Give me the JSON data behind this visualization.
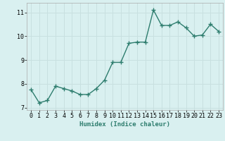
{
  "x": [
    0,
    1,
    2,
    3,
    4,
    5,
    6,
    7,
    8,
    9,
    10,
    11,
    12,
    13,
    14,
    15,
    16,
    17,
    18,
    19,
    20,
    21,
    22,
    23
  ],
  "y": [
    7.75,
    7.2,
    7.3,
    7.9,
    7.8,
    7.7,
    7.55,
    7.55,
    7.8,
    8.15,
    8.9,
    8.9,
    9.7,
    9.75,
    9.75,
    11.1,
    10.45,
    10.45,
    10.6,
    10.35,
    10.0,
    10.05,
    10.5,
    10.2
  ],
  "line_color": "#2e7d6e",
  "marker": "+",
  "marker_size": 4,
  "marker_lw": 1.0,
  "bg_color": "#d9f0f0",
  "grid_color": "#c8e0e0",
  "xlabel": "Humidex (Indice chaleur)",
  "ylim": [
    6.9,
    11.4
  ],
  "yticks": [
    7,
    8,
    9,
    10,
    11
  ],
  "xticks": [
    0,
    1,
    2,
    3,
    4,
    5,
    6,
    7,
    8,
    9,
    10,
    11,
    12,
    13,
    14,
    15,
    16,
    17,
    18,
    19,
    20,
    21,
    22,
    23
  ],
  "axis_fontsize": 6.5,
  "tick_fontsize": 6.0,
  "line_width": 1.0
}
